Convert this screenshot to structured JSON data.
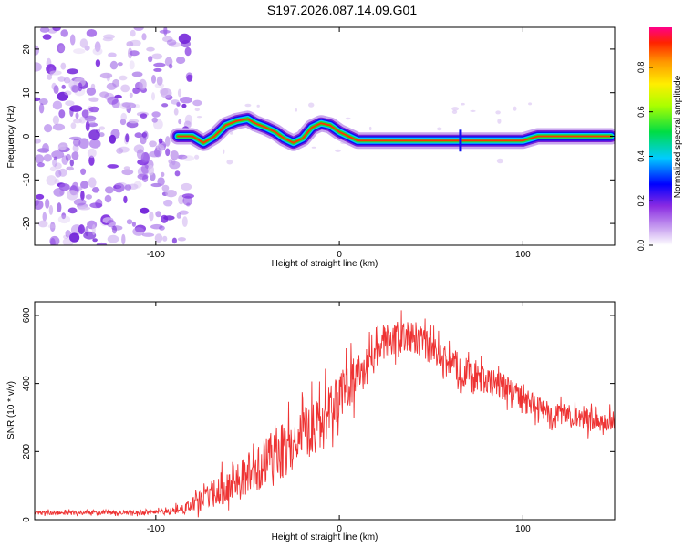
{
  "title": "S197.2026.087.14.09.G01",
  "chart_data": [
    {
      "type": "heatmap",
      "xlabel": "Height of straight line (km)",
      "ylabel": "Frequency (Hz)",
      "xlim": [
        -166,
        150
      ],
      "ylim": [
        -25,
        25
      ],
      "xticks": [
        -100,
        0,
        100
      ],
      "yticks": [
        -20,
        -10,
        0,
        10,
        20
      ],
      "grid": false,
      "noise_region_x": [
        -166,
        -82
      ],
      "noise_points": 320,
      "ridge_track": [
        {
          "x": -88,
          "y": 0.0
        },
        {
          "x": -80,
          "y": 0.0
        },
        {
          "x": -74,
          "y": -1.5
        },
        {
          "x": -68,
          "y": 0.0
        },
        {
          "x": -62,
          "y": 2.5
        },
        {
          "x": -56,
          "y": 3.5
        },
        {
          "x": -50,
          "y": 4.0
        },
        {
          "x": -46,
          "y": 3.0
        },
        {
          "x": -40,
          "y": 2.0
        },
        {
          "x": -35,
          "y": 1.0
        },
        {
          "x": -30,
          "y": -0.5
        },
        {
          "x": -25,
          "y": -1.5
        },
        {
          "x": -20,
          "y": -0.5
        },
        {
          "x": -15,
          "y": 2.0
        },
        {
          "x": -10,
          "y": 3.0
        },
        {
          "x": -5,
          "y": 2.5
        },
        {
          "x": 0,
          "y": 1.0
        },
        {
          "x": 5,
          "y": 0.0
        },
        {
          "x": 10,
          "y": -1.0
        },
        {
          "x": 60,
          "y": -1.0
        },
        {
          "x": 68,
          "y": -1.0
        },
        {
          "x": 100,
          "y": -1.0
        },
        {
          "x": 108,
          "y": 0.0
        },
        {
          "x": 148,
          "y": 0.0
        }
      ],
      "colorbar": {
        "label": "Normalized spectral amplitude",
        "range": [
          0,
          0.98
        ],
        "ticks": [
          "0.0",
          "0.2",
          "0.4",
          "0.6",
          "0.8"
        ],
        "tick_values": [
          0,
          0.2,
          0.4,
          0.6,
          0.8
        ]
      }
    },
    {
      "type": "line",
      "series_name": "SNR",
      "color": "#ee3333",
      "xlabel": "Height of straight line (km)",
      "ylabel": "SNR (10 * v/v)",
      "xlim": [
        -166,
        150
      ],
      "ylim": [
        0,
        640
      ],
      "xticks": [
        -100,
        0,
        100
      ],
      "yticks": [
        0,
        200,
        400,
        600
      ],
      "grid": false,
      "envelope": {
        "x": [
          -166,
          -120,
          -95,
          -85,
          -75,
          -65,
          -55,
          -45,
          -35,
          -25,
          -15,
          -5,
          5,
          15,
          25,
          35,
          45,
          55,
          65,
          75,
          85,
          95,
          105,
          115,
          125,
          135,
          150
        ],
        "y": [
          20,
          20,
          22,
          30,
          55,
          90,
          120,
          150,
          190,
          230,
          270,
          320,
          390,
          450,
          520,
          545,
          520,
          475,
          445,
          415,
          400,
          375,
          335,
          315,
          305,
          295,
          290
        ],
        "spread": [
          8,
          8,
          10,
          20,
          40,
          60,
          75,
          85,
          95,
          100,
          105,
          100,
          90,
          75,
          60,
          55,
          55,
          60,
          60,
          55,
          50,
          50,
          45,
          40,
          40,
          40,
          40
        ]
      },
      "samples": 1200
    }
  ]
}
